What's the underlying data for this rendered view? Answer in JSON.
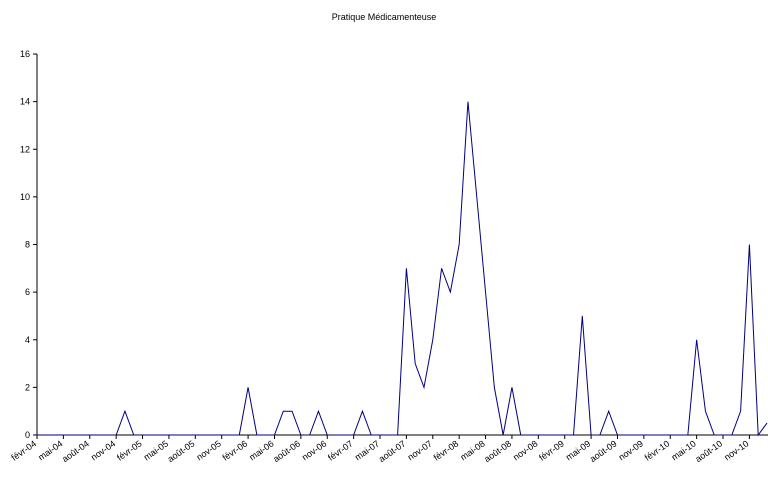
{
  "chart_data": {
    "type": "line",
    "title": "Pratique Médicamenteuse",
    "categories": [
      "févr-04",
      null,
      null,
      "mai-04",
      null,
      null,
      "août-04",
      null,
      null,
      "nov-04",
      null,
      null,
      "févr-05",
      null,
      null,
      "mai-05",
      null,
      null,
      "août-05",
      null,
      null,
      "nov-05",
      null,
      null,
      "févr-06",
      null,
      null,
      "mai-06",
      null,
      null,
      "août-06",
      null,
      null,
      "nov-06",
      null,
      null,
      "févr-07",
      null,
      null,
      "mai-07",
      null,
      null,
      "août-07",
      null,
      null,
      "nov-07",
      null,
      null,
      "févr-08",
      null,
      null,
      "mai-08",
      null,
      null,
      "août-08",
      null,
      null,
      "nov-08",
      null,
      null,
      "févr-09",
      null,
      null,
      "mai-09",
      null,
      null,
      "août-09",
      null,
      null,
      "nov-09",
      null,
      null,
      "févr-10",
      null,
      null,
      "mai-10",
      null,
      null,
      "août-10",
      null,
      null,
      "nov-10",
      null,
      null
    ],
    "values": [
      0,
      0,
      0,
      0,
      0,
      0,
      0,
      0,
      0,
      0,
      1,
      0,
      0,
      0,
      0,
      0,
      0,
      0,
      0,
      0,
      0,
      0,
      0,
      0,
      2,
      0,
      0,
      0,
      1,
      1,
      0,
      0,
      1,
      0,
      0,
      0,
      0,
      1,
      0,
      0,
      0,
      0,
      7,
      3,
      2,
      4,
      7,
      6,
      8,
      14,
      10,
      6,
      2,
      0,
      2,
      0,
      0,
      0,
      0,
      0,
      0,
      0,
      5,
      0,
      0,
      1,
      0,
      0,
      0,
      0,
      0,
      0,
      0,
      0,
      0,
      4,
      1,
      0,
      0,
      0,
      1,
      8,
      0,
      0.5
    ],
    "color": "#000080",
    "ylim": [
      0,
      16
    ],
    "yticks": [
      0,
      2,
      4,
      6,
      8,
      10,
      12,
      14,
      16
    ],
    "grid": false
  }
}
